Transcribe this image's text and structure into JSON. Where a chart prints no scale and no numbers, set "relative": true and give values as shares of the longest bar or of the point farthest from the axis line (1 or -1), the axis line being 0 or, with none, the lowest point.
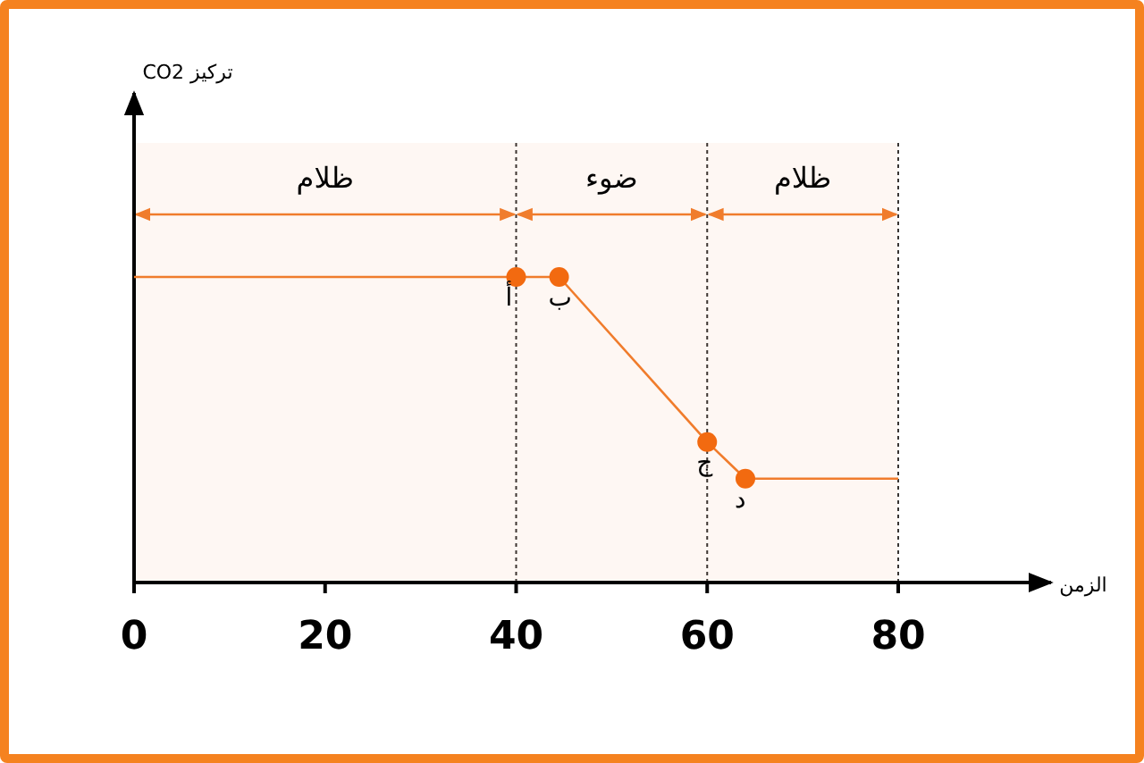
{
  "chart_data": {
    "type": "line",
    "relative": true,
    "xlabel": "الزمن",
    "xlim": [
      0,
      96
    ],
    "xticks": [
      0,
      20,
      40,
      60,
      80
    ],
    "series": [
      {
        "type": "line",
        "color": "#f07c2c",
        "marker": "none",
        "x": [
          0,
          40,
          44.5,
          60,
          64,
          80
        ],
        "values": [
          1,
          1,
          1,
          0.46,
          0.34,
          0.34
        ]
      },
      {
        "type": "scatter",
        "color": "#f26a10",
        "marker": "circle",
        "x": [
          40,
          44.5,
          60,
          64
        ],
        "values": [
          1,
          1,
          0.46,
          0.34
        ]
      }
    ],
    "annotations": [
      "تركيز CO2",
      {
        "text": "أ",
        "x": 40,
        "y": 1
      },
      {
        "text": "ب",
        "x": 44.5,
        "y": 1
      },
      {
        "text": "ج",
        "x": 60,
        "y": 0.46
      },
      {
        "text": "د",
        "x": 64,
        "y": 0.34
      }
    ],
    "bands": [
      {
        "axis": "x",
        "from": 0,
        "to": 40,
        "label": "ظلام",
        "color": "#f07c2c"
      },
      {
        "axis": "x",
        "from": 40,
        "to": 60,
        "label": "ضوء",
        "color": "#f07c2c"
      },
      {
        "axis": "x",
        "from": 60,
        "to": 80,
        "label": "ظلام",
        "color": "#f07c2c"
      }
    ],
    "ref_lines": [
      {
        "axis": "x",
        "value": 40,
        "line_style": "dotted"
      },
      {
        "axis": "x",
        "value": 60,
        "line_style": "dotted"
      },
      {
        "axis": "x",
        "value": 80,
        "line_style": "dotted"
      }
    ]
  }
}
